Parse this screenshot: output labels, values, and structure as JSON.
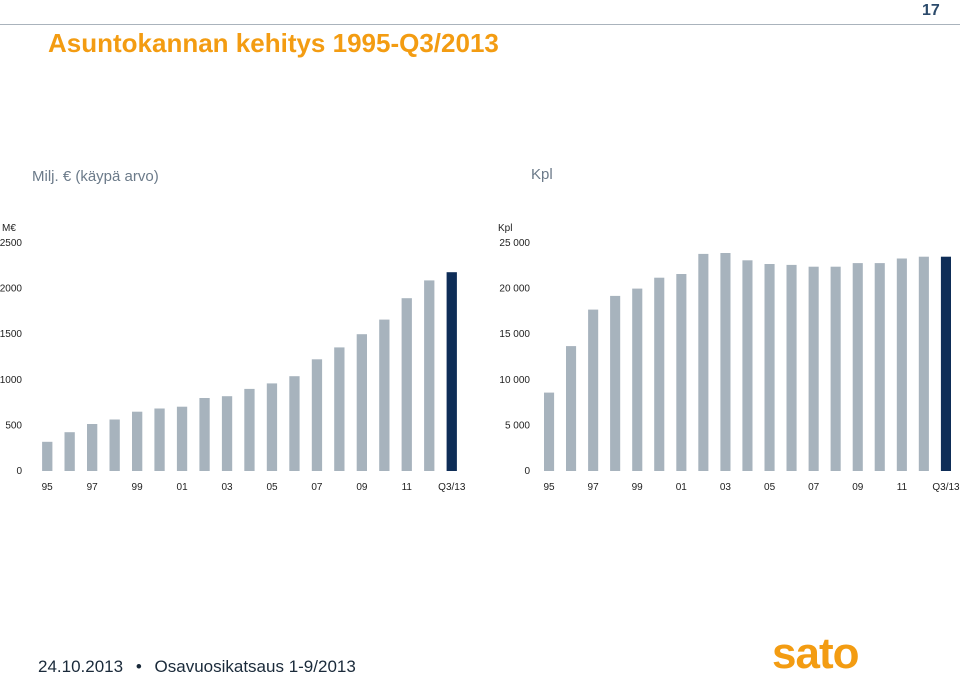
{
  "slide": {
    "title": "Asuntokannan kehitys 1995-Q3/2013",
    "page_number": "17",
    "footer_date": "24.10.2013",
    "footer_separator": "•",
    "footer_label": "Osavuosikatsaus 1-9/2013",
    "logo_text": "sato",
    "colors": {
      "title": "#f39c12",
      "bar": "#a7b3bd",
      "bar_highlight": "#0e2d57",
      "logo": "#f39c12"
    }
  },
  "chart_data": [
    {
      "type": "bar",
      "title": "Milj. € (käypä arvo)",
      "ylabel": "M€",
      "ylim": [
        0,
        2500
      ],
      "yticks": [
        "0",
        "500",
        "1000",
        "1500",
        "2000",
        "2500"
      ],
      "xtick_labels": [
        "95",
        "97",
        "99",
        "01",
        "03",
        "05",
        "07",
        "09",
        "11",
        "Q3/13"
      ],
      "categories": [
        "95",
        "96",
        "97",
        "98",
        "99",
        "00",
        "01",
        "02",
        "03",
        "04",
        "05",
        "06",
        "07",
        "08",
        "09",
        "10",
        "11",
        "12",
        "Q3/13"
      ],
      "values": [
        320,
        425,
        515,
        565,
        650,
        685,
        705,
        800,
        820,
        900,
        960,
        1040,
        1225,
        1355,
        1500,
        1660,
        1895,
        2090,
        2180
      ],
      "highlight_last": true,
      "grid": false
    },
    {
      "type": "bar",
      "title": "Kpl",
      "ylabel": "Kpl",
      "ylim": [
        0,
        25000
      ],
      "yticks": [
        "0",
        "5 000",
        "10 000",
        "15 000",
        "20 000",
        "25 000"
      ],
      "xtick_labels": [
        "95",
        "97",
        "99",
        "01",
        "03",
        "05",
        "07",
        "09",
        "11",
        "Q3/13"
      ],
      "categories": [
        "95",
        "96",
        "97",
        "98",
        "99",
        "00",
        "01",
        "02",
        "03",
        "04",
        "05",
        "06",
        "07",
        "08",
        "09",
        "10",
        "11",
        "12",
        "Q3/13"
      ],
      "values": [
        8600,
        13700,
        17700,
        19200,
        20000,
        21200,
        21600,
        23800,
        23900,
        23100,
        22700,
        22600,
        22400,
        22400,
        22800,
        22800,
        23300,
        23500,
        23500
      ],
      "highlight_last": true,
      "grid": false
    }
  ]
}
